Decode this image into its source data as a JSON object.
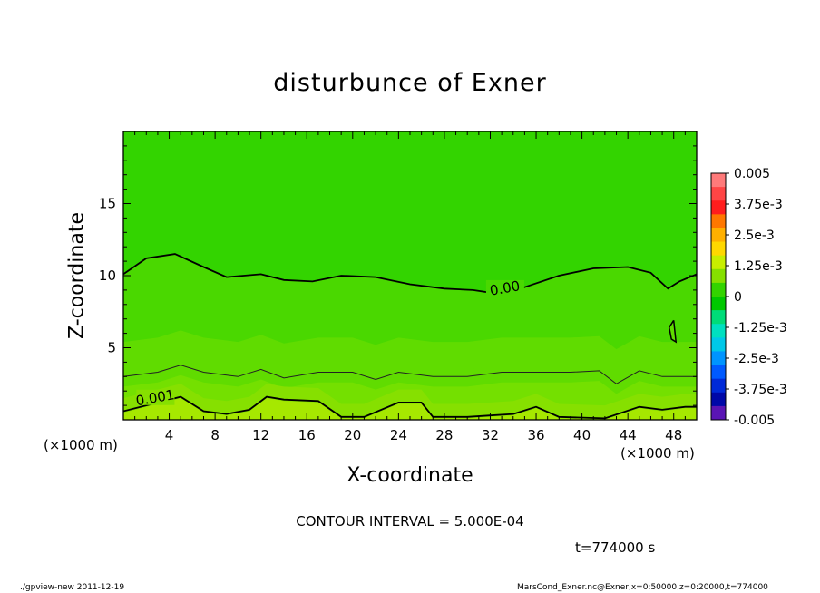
{
  "chart_data": {
    "type": "heatmap",
    "title": "disturbunce of Exner",
    "xlabel": "X-coordinate",
    "ylabel": "Z-coordinate",
    "x_unit": "(×1000 m)",
    "xlim": [
      0,
      50
    ],
    "ylim": [
      0,
      20
    ],
    "x_ticks": [
      4,
      8,
      12,
      16,
      20,
      24,
      28,
      32,
      36,
      40,
      44,
      48
    ],
    "y_ticks": [
      5,
      10,
      15
    ],
    "contour_interval_text": "CONTOUR INTERVAL = 5.000E-04",
    "time_text": "t=774000 s",
    "contour_labels": [
      {
        "text": "0.00",
        "x": 33.3,
        "z": 9.0
      },
      {
        "text": "0.001",
        "x": 2.8,
        "z": 1.4
      }
    ],
    "colorbar": {
      "labels": [
        "0.005",
        "3.75e-3",
        "2.5e-3",
        "1.25e-3",
        "0",
        "-1.25e-3",
        "-2.5e-3",
        "-3.75e-3",
        "-0.005"
      ],
      "colors": [
        "#ff7a7a",
        "#ff4545",
        "#ff1d1d",
        "#ff7700",
        "#ffb000",
        "#ffd800",
        "#c8ee00",
        "#86e000",
        "#33d400",
        "#00c800",
        "#00dc78",
        "#00e0c0",
        "#00c8e8",
        "#0094ff",
        "#005aff",
        "#002ad8",
        "#0008a8",
        "#5a14b4"
      ]
    },
    "field_colors": {
      "upper": "#33d400",
      "middle": "#4ad800",
      "lower_light": "#60dc00",
      "band": "#74e000",
      "bottom": "#86e000",
      "floor": "#a6e800"
    },
    "contours": {
      "zero_level": [
        [
          0,
          10.1
        ],
        [
          2,
          11.2
        ],
        [
          4.5,
          11.5
        ],
        [
          7,
          10.6
        ],
        [
          9,
          9.9
        ],
        [
          12,
          10.1
        ],
        [
          14,
          9.7
        ],
        [
          16.5,
          9.6
        ],
        [
          19,
          10.0
        ],
        [
          22,
          9.9
        ],
        [
          25,
          9.4
        ],
        [
          28,
          9.1
        ],
        [
          30.5,
          9.0
        ],
        [
          33,
          8.7
        ],
        [
          35,
          9.2
        ],
        [
          38,
          10.0
        ],
        [
          41,
          10.5
        ],
        [
          44,
          10.6
        ],
        [
          46,
          10.2
        ],
        [
          47.5,
          9.1
        ],
        [
          48.5,
          9.6
        ],
        [
          50,
          10.1
        ]
      ],
      "lower_level": [
        [
          0,
          3.0
        ],
        [
          3,
          3.3
        ],
        [
          5,
          3.8
        ],
        [
          7,
          3.3
        ],
        [
          10,
          3.0
        ],
        [
          12,
          3.5
        ],
        [
          14,
          2.9
        ],
        [
          17,
          3.3
        ],
        [
          20,
          3.3
        ],
        [
          22,
          2.8
        ],
        [
          24,
          3.3
        ],
        [
          27,
          3.0
        ],
        [
          30,
          3.0
        ],
        [
          33,
          3.3
        ],
        [
          36,
          3.3
        ],
        [
          39,
          3.3
        ],
        [
          41.5,
          3.4
        ],
        [
          43,
          2.5
        ],
        [
          45,
          3.4
        ],
        [
          47,
          3.0
        ],
        [
          50,
          3.0
        ]
      ],
      "bottom_level": [
        [
          0,
          0.6
        ],
        [
          2,
          1.0
        ],
        [
          5,
          1.6
        ],
        [
          7,
          0.6
        ],
        [
          9,
          0.4
        ],
        [
          11,
          0.7
        ],
        [
          12.5,
          1.6
        ],
        [
          14,
          1.4
        ],
        [
          17,
          1.3
        ],
        [
          19,
          0.2
        ],
        [
          21,
          0.2
        ],
        [
          24,
          1.2
        ],
        [
          26,
          1.2
        ],
        [
          27,
          0.2
        ],
        [
          30,
          0.2
        ],
        [
          32,
          0.3
        ],
        [
          34,
          0.4
        ],
        [
          36,
          0.9
        ],
        [
          38,
          0.2
        ],
        [
          42,
          0.1
        ],
        [
          45,
          0.9
        ],
        [
          47,
          0.7
        ],
        [
          49,
          0.9
        ],
        [
          50,
          0.9
        ]
      ],
      "small_loop": [
        [
          48,
          6.9
        ],
        [
          48.2,
          5.4
        ],
        [
          47.8,
          5.6
        ],
        [
          47.6,
          6.4
        ],
        [
          48,
          6.9
        ]
      ]
    }
  },
  "footer": {
    "left": "./gpview-new   2011-12-19",
    "right": "MarsCond_Exner.nc@Exner,x=0:50000,z=0:20000,t=774000"
  }
}
